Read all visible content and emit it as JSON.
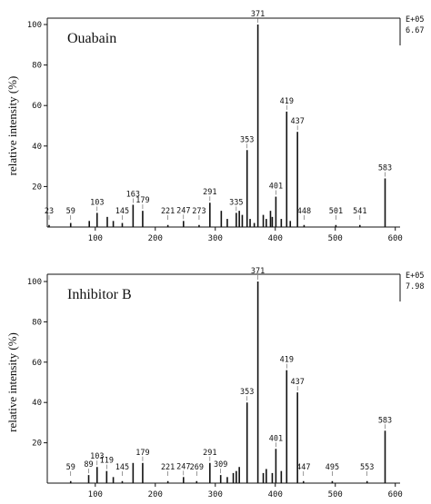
{
  "chart_data": [
    {
      "type": "bar",
      "title": "Ouabain",
      "y_label": "relative intensity (%)",
      "annotations": [
        "E+05",
        "6.67"
      ],
      "color": "#111111",
      "x": [
        23,
        59,
        103,
        145,
        163,
        179,
        221,
        247,
        273,
        291,
        335,
        353,
        371,
        401,
        419,
        437,
        448,
        501,
        541,
        583
      ],
      "values": [
        1,
        2,
        7,
        2,
        11,
        8,
        1,
        3,
        1,
        12,
        7,
        38,
        100,
        15,
        57,
        47,
        1,
        1,
        1,
        24
      ],
      "minor_x": [
        90,
        120,
        130,
        310,
        320,
        340,
        345,
        358,
        365,
        380,
        385,
        392,
        395,
        410,
        425
      ],
      "minor_values": [
        3,
        5,
        3,
        8,
        4,
        8,
        6,
        4,
        2,
        6,
        4,
        8,
        5,
        4,
        3
      ],
      "xlim": [
        20,
        608
      ],
      "ylim": [
        0,
        100
      ],
      "xticks": [
        100,
        200,
        300,
        400,
        500,
        600
      ],
      "yticks": [
        20,
        40,
        60,
        80,
        100
      ]
    },
    {
      "type": "bar",
      "title": "Inhibitor B",
      "y_label": "relative intensity (%)",
      "annotations": [
        "E+05",
        "7.98"
      ],
      "color": "#111111",
      "x": [
        59,
        89,
        103,
        119,
        145,
        179,
        221,
        247,
        269,
        291,
        309,
        353,
        371,
        401,
        419,
        437,
        447,
        495,
        553,
        583
      ],
      "values": [
        1,
        4,
        8,
        6,
        1,
        10,
        1,
        3,
        1,
        10,
        4,
        40,
        100,
        17,
        56,
        45,
        1,
        1,
        1,
        26
      ],
      "minor_x": [
        130,
        163,
        320,
        330,
        335,
        340,
        380,
        385,
        395,
        410
      ],
      "minor_values": [
        3,
        10,
        3,
        5,
        6,
        8,
        5,
        7,
        5,
        6
      ],
      "xlim": [
        20,
        608
      ],
      "ylim": [
        0,
        100
      ],
      "xticks": [
        100,
        200,
        300,
        400,
        500,
        600
      ],
      "yticks": [
        20,
        40,
        60,
        80,
        100
      ]
    }
  ]
}
